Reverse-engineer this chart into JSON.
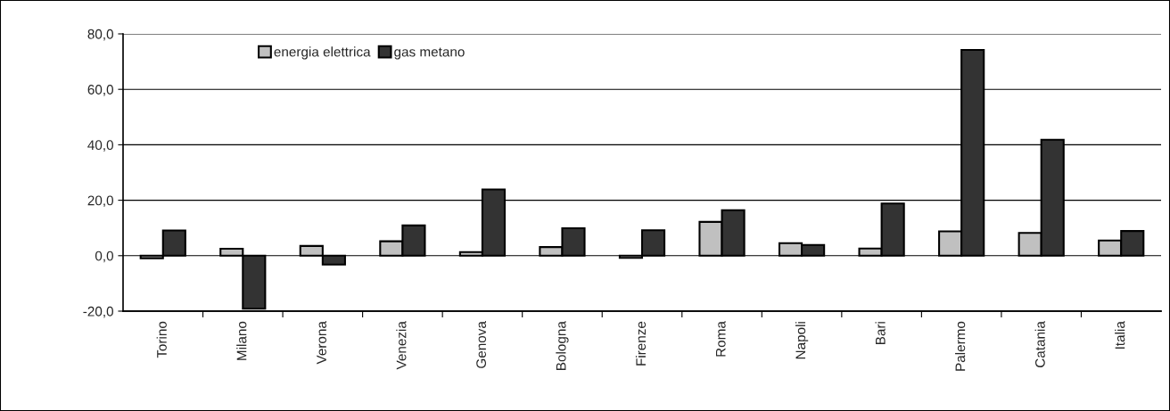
{
  "chart_data": {
    "type": "bar",
    "categories": [
      "Torino",
      "Milano",
      "Verona",
      "Venezia",
      "Genova",
      "Bologna",
      "Firenze",
      "Roma",
      "Napoli",
      "Bari",
      "Palermo",
      "Catania",
      "Italia"
    ],
    "series": [
      {
        "name": "energia elettrica",
        "color": "#c0c0c0",
        "values": [
          -0.9,
          2.5,
          3.5,
          5.2,
          1.3,
          3.1,
          -0.8,
          12.2,
          4.5,
          2.6,
          8.8,
          8.2,
          5.5
        ]
      },
      {
        "name": "gas metano",
        "color": "#333333",
        "values": [
          9.1,
          -19.1,
          -3.2,
          10.9,
          23.9,
          9.9,
          9.2,
          16.4,
          3.9,
          18.8,
          74.2,
          41.8,
          8.9
        ]
      }
    ],
    "ylim": [
      -20,
      80
    ],
    "yticks": [
      {
        "value": -20,
        "label": "-20,0"
      },
      {
        "value": 0,
        "label": "0,0"
      },
      {
        "value": 20,
        "label": "20,0"
      },
      {
        "value": 40,
        "label": "40,0"
      },
      {
        "value": 60,
        "label": "60,0"
      },
      {
        "value": 80,
        "label": "80,0"
      }
    ],
    "grid": "y",
    "legend": "top"
  }
}
